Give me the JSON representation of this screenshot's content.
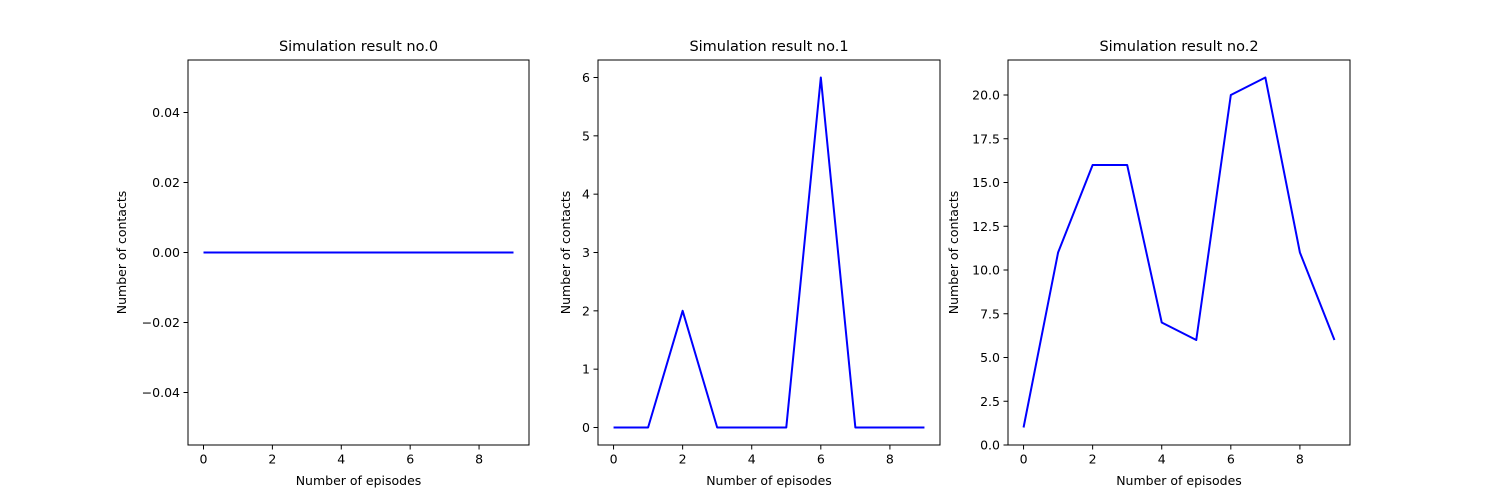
{
  "chart_data": [
    {
      "type": "line",
      "title": "Simulation result no.0",
      "xlabel": "Number of episodes",
      "ylabel": "Number of contacts",
      "x": [
        0,
        1,
        2,
        3,
        4,
        5,
        6,
        7,
        8,
        9
      ],
      "series": [
        {
          "values": [
            0,
            0,
            0,
            0,
            0,
            0,
            0,
            0,
            0,
            0
          ],
          "color": "#0000ff"
        }
      ],
      "xlim": [
        -0.45,
        9.45
      ],
      "ylim": [
        -0.055,
        0.055
      ],
      "xticks": [
        0,
        2,
        4,
        6,
        8
      ],
      "xtick_labels": [
        "0",
        "2",
        "4",
        "6",
        "8"
      ],
      "yticks": [
        -0.04,
        -0.02,
        0.0,
        0.02,
        0.04
      ],
      "ytick_labels": [
        "−0.04",
        "−0.02",
        "0.00",
        "0.02",
        "0.04"
      ],
      "grid": false
    },
    {
      "type": "line",
      "title": "Simulation result no.1",
      "xlabel": "Number of episodes",
      "ylabel": "Number of contacts",
      "x": [
        0,
        1,
        2,
        3,
        4,
        5,
        6,
        7,
        8,
        9
      ],
      "series": [
        {
          "values": [
            0,
            0,
            2,
            0,
            0,
            0,
            6,
            0,
            0,
            0
          ],
          "color": "#0000ff"
        }
      ],
      "xlim": [
        -0.45,
        9.45
      ],
      "ylim": [
        -0.3,
        6.3
      ],
      "xticks": [
        0,
        2,
        4,
        6,
        8
      ],
      "xtick_labels": [
        "0",
        "2",
        "4",
        "6",
        "8"
      ],
      "yticks": [
        0,
        1,
        2,
        3,
        4,
        5,
        6
      ],
      "ytick_labels": [
        "0",
        "1",
        "2",
        "3",
        "4",
        "5",
        "6"
      ],
      "grid": false
    },
    {
      "type": "line",
      "title": "Simulation result no.2",
      "xlabel": "Number of episodes",
      "ylabel": "Number of contacts",
      "x": [
        0,
        1,
        2,
        3,
        4,
        5,
        6,
        7,
        8,
        9
      ],
      "series": [
        {
          "values": [
            1,
            11,
            16,
            16,
            7,
            6,
            20,
            21,
            11,
            6
          ],
          "color": "#0000ff"
        }
      ],
      "xlim": [
        -0.45,
        9.45
      ],
      "ylim": [
        0,
        22
      ],
      "xticks": [
        0,
        2,
        4,
        6,
        8
      ],
      "xtick_labels": [
        "0",
        "2",
        "4",
        "6",
        "8"
      ],
      "yticks": [
        0,
        2.5,
        5,
        7.5,
        10,
        12.5,
        15,
        17.5,
        20
      ],
      "ytick_labels": [
        "0.0",
        "2.5",
        "5.0",
        "7.5",
        "10.0",
        "12.5",
        "15.0",
        "17.5",
        "20.0"
      ],
      "grid": false
    }
  ]
}
